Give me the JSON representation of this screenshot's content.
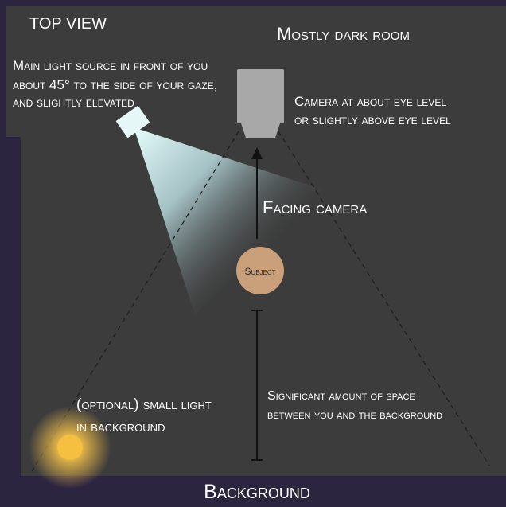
{
  "title": "TOP VIEW",
  "room_label": "Mostly dark room",
  "main_light": [
    "Main light source in front of you",
    "about 45° to the side of your gaze,",
    "and slightly elevated"
  ],
  "camera": [
    "Camera at about eye level",
    "or slightly above eye level"
  ],
  "facing": "Facing camera",
  "subject": "Subject",
  "small_light": [
    "(optional) small light",
    "in background"
  ],
  "space": [
    "Significant amount of space",
    "between you and the background"
  ],
  "background": "Background"
}
